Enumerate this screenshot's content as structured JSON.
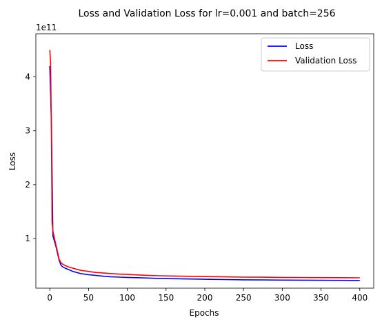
{
  "chart_data": {
    "type": "line",
    "title": "Loss and Validation Loss for lr=0.001 and batch=256",
    "xlabel": "Epochs",
    "ylabel": "Loss",
    "y_scale_label": "1e11",
    "xlim": [
      -18,
      418
    ],
    "ylim": [
      0.08,
      4.8
    ],
    "x_ticks": [
      0,
      50,
      100,
      150,
      200,
      250,
      300,
      350,
      400
    ],
    "y_ticks": [
      1,
      2,
      3,
      4
    ],
    "grid": false,
    "legend_position": "top-right",
    "series": [
      {
        "name": "Loss",
        "color": "#0000ff",
        "x": [
          0,
          2,
          4,
          6,
          8,
          10,
          12,
          14,
          16,
          20,
          25,
          30,
          40,
          50,
          60,
          70,
          80,
          90,
          100,
          120,
          140,
          160,
          180,
          200,
          225,
          250,
          275,
          300,
          325,
          350,
          375,
          400
        ],
        "y": [
          4.2,
          3.2,
          1.05,
          0.95,
          0.85,
          0.72,
          0.6,
          0.52,
          0.48,
          0.45,
          0.42,
          0.39,
          0.35,
          0.33,
          0.315,
          0.3,
          0.29,
          0.285,
          0.28,
          0.27,
          0.26,
          0.255,
          0.25,
          0.245,
          0.24,
          0.235,
          0.232,
          0.23,
          0.228,
          0.226,
          0.224,
          0.222
        ]
      },
      {
        "name": "Validation Loss",
        "color": "#ff0000",
        "x": [
          0,
          1,
          2,
          3,
          4,
          6,
          8,
          10,
          12,
          14,
          16,
          20,
          25,
          30,
          40,
          50,
          60,
          70,
          80,
          90,
          100,
          120,
          140,
          160,
          180,
          200,
          225,
          250,
          275,
          300,
          325,
          350,
          375,
          400
        ],
        "y": [
          4.5,
          4.25,
          3.0,
          1.3,
          1.15,
          1.0,
          0.88,
          0.75,
          0.62,
          0.56,
          0.53,
          0.5,
          0.47,
          0.45,
          0.41,
          0.39,
          0.37,
          0.36,
          0.35,
          0.34,
          0.335,
          0.32,
          0.31,
          0.305,
          0.3,
          0.295,
          0.29,
          0.285,
          0.283,
          0.28,
          0.278,
          0.276,
          0.274,
          0.272
        ]
      }
    ]
  }
}
